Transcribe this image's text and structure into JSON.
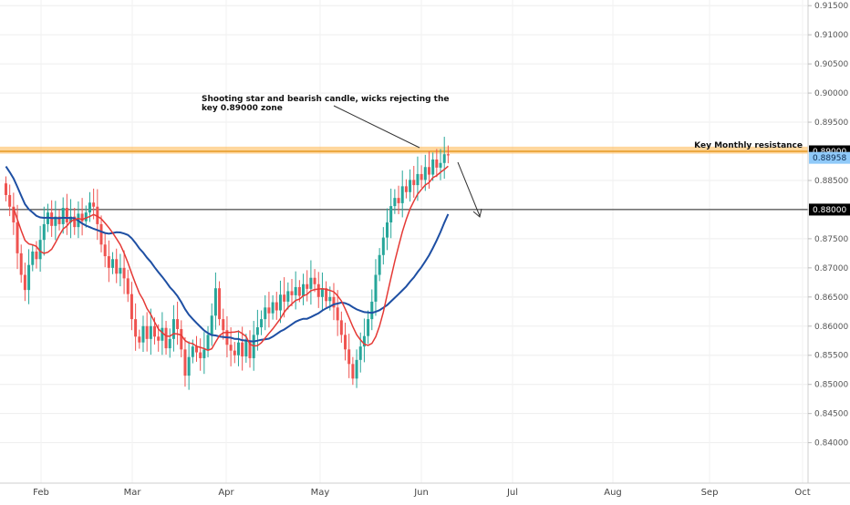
{
  "chart_data": {
    "type": "candlestick",
    "y_axis": {
      "ticks": [
        "0.91500",
        "0.91000",
        "0.90500",
        "0.90000",
        "0.89500",
        "0.89000",
        "0.88500",
        "0.88000",
        "0.87500",
        "0.87000",
        "0.86500",
        "0.86000",
        "0.85500",
        "0.85000",
        "0.84500",
        "0.84000"
      ],
      "range": [
        0.8365,
        0.9155
      ]
    },
    "x_axis": {
      "ticks": [
        "Feb",
        "Mar",
        "Apr",
        "May",
        "Jun",
        "Jul",
        "Aug",
        "Sep",
        "Oct"
      ]
    },
    "price_tags": {
      "current": "0.88958",
      "resistance": "0.89000",
      "support": "0.88000"
    },
    "annotations": {
      "shooting_star_line1": "Shooting star and bearish candle, wicks rejecting the",
      "shooting_star_line2": "key 0.89000 zone",
      "resistance_label": "Key Monthly resistance"
    },
    "levels": {
      "resistance_zone": [
        0.8896,
        0.8908
      ],
      "support": 0.88
    },
    "colors": {
      "up": "#26a69a",
      "down": "#ef5350",
      "ma_fast": "#e53935",
      "ma_slow": "#1e4fa3",
      "zone": "#ffb74d",
      "current_tag": "#90caf9"
    },
    "closes": [
      0.8825,
      0.8805,
      0.8778,
      0.8725,
      0.8688,
      0.8662,
      0.8705,
      0.8728,
      0.8715,
      0.8748,
      0.8775,
      0.8795,
      0.8772,
      0.8788,
      0.8775,
      0.8803,
      0.8778,
      0.8788,
      0.877,
      0.8793,
      0.878,
      0.8795,
      0.8812,
      0.8805,
      0.8775,
      0.874,
      0.872,
      0.87,
      0.8715,
      0.869,
      0.87,
      0.8682,
      0.8655,
      0.8612,
      0.8582,
      0.8572,
      0.86,
      0.8578,
      0.86,
      0.8582,
      0.8575,
      0.8597,
      0.8562,
      0.8578,
      0.8612,
      0.8595,
      0.856,
      0.8515,
      0.8547,
      0.8565,
      0.8555,
      0.8545,
      0.856,
      0.8585,
      0.8618,
      0.8665,
      0.8612,
      0.8593,
      0.8568,
      0.8558,
      0.855,
      0.8572,
      0.8548,
      0.8575,
      0.8545,
      0.8585,
      0.8598,
      0.8612,
      0.8632,
      0.8622,
      0.8641,
      0.8627,
      0.8654,
      0.8642,
      0.866,
      0.8653,
      0.8667,
      0.8652,
      0.8672,
      0.8664,
      0.8683,
      0.8672,
      0.865,
      0.8665,
      0.8643,
      0.865,
      0.8632,
      0.861,
      0.8585,
      0.856,
      0.8535,
      0.851,
      0.8542,
      0.8565,
      0.8583,
      0.8612,
      0.8642,
      0.8688,
      0.8722,
      0.8752,
      0.8778,
      0.8806,
      0.882,
      0.8811,
      0.884,
      0.883,
      0.8851,
      0.8842,
      0.8861,
      0.8851,
      0.8873,
      0.886,
      0.8886,
      0.8872,
      0.888,
      0.8895,
      0.8893
    ]
  }
}
